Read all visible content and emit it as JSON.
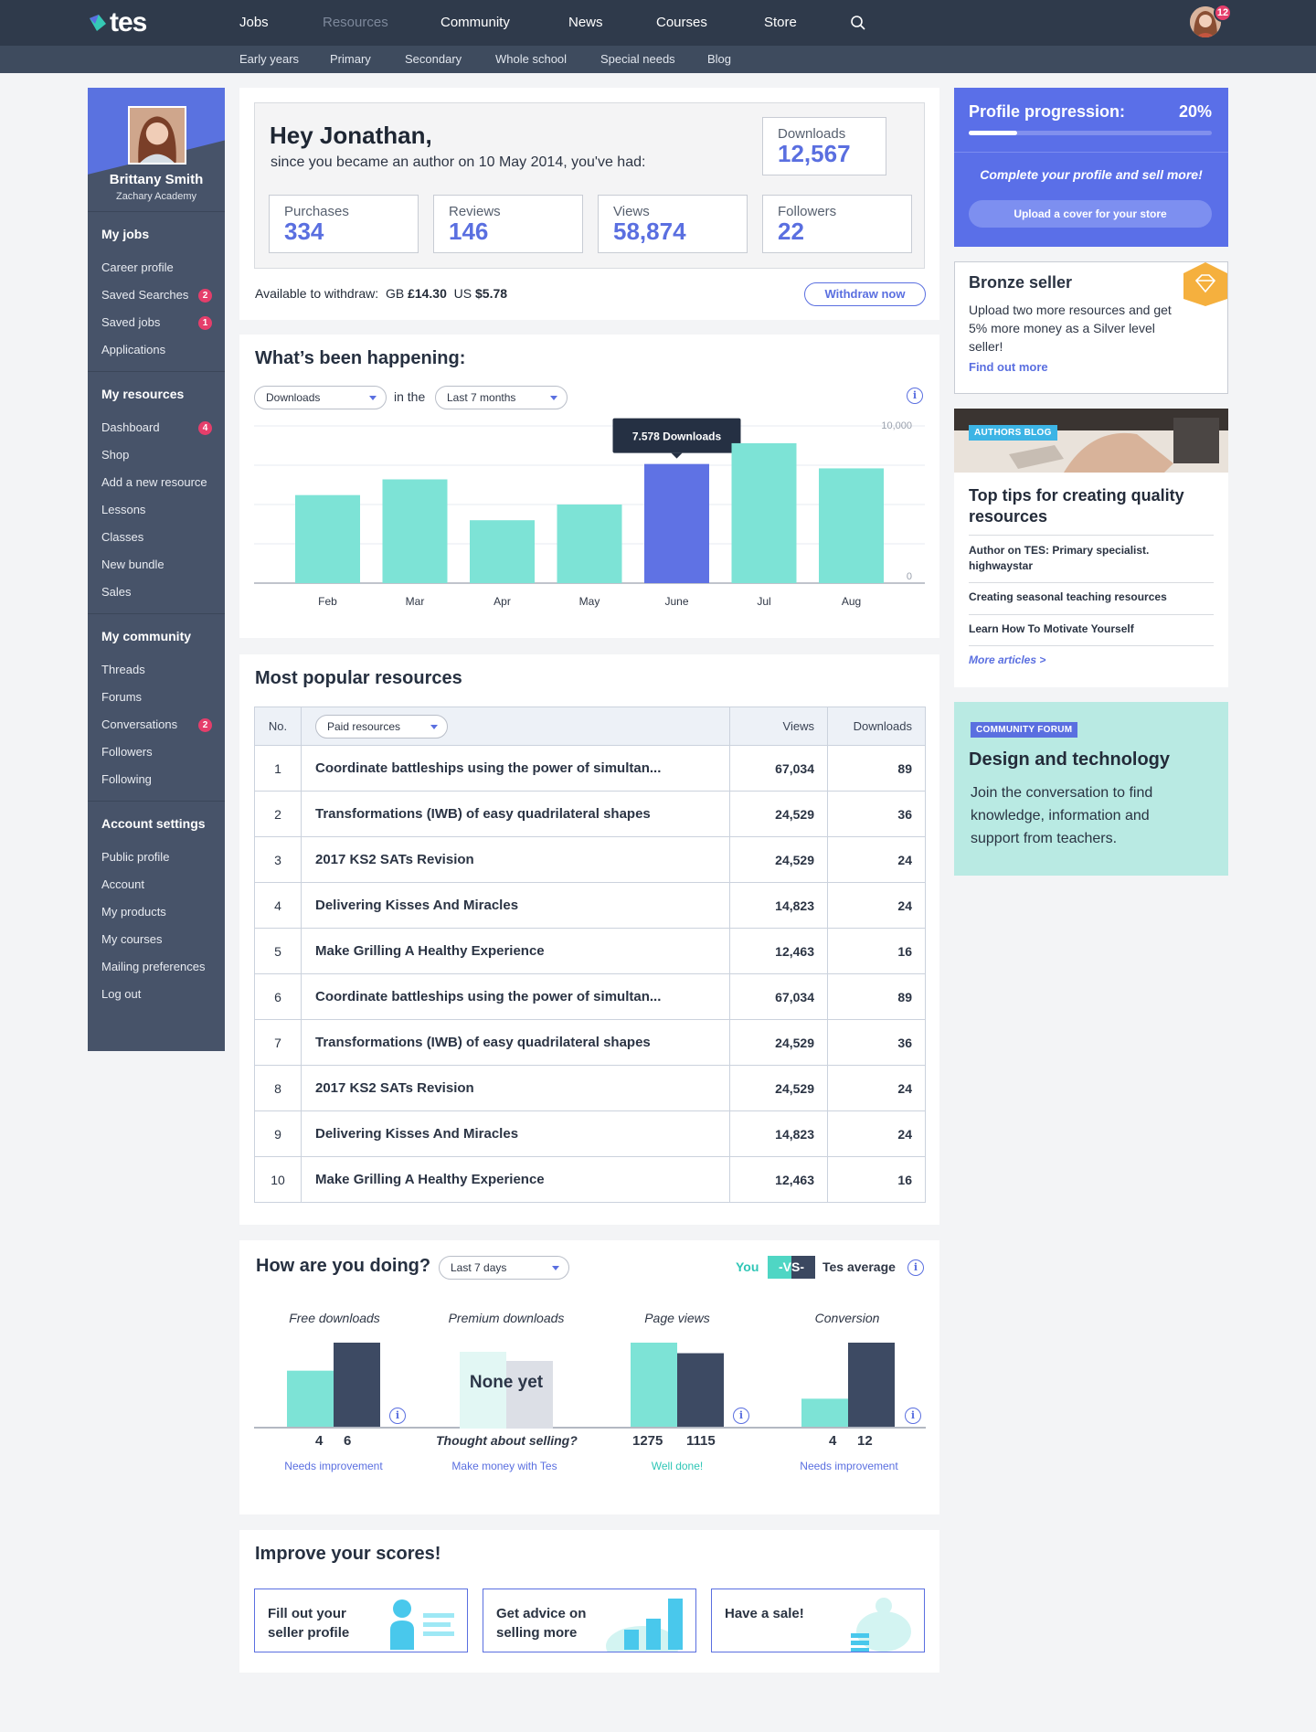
{
  "brand": {
    "name": "tes"
  },
  "nav": {
    "items": [
      "Jobs",
      "Resources",
      "Community",
      "News",
      "Courses",
      "Store"
    ],
    "notif_count": "12"
  },
  "subnav": [
    "Early years",
    "Primary",
    "Secondary",
    "Whole school",
    "Special needs",
    "Blog"
  ],
  "sidebar": {
    "name": "Brittany Smith",
    "school": "Zachary Academy",
    "sections": [
      {
        "title": "My jobs",
        "items": [
          {
            "label": "Career profile"
          },
          {
            "label": "Saved Searches",
            "badge": "2"
          },
          {
            "label": "Saved jobs",
            "badge": "1"
          },
          {
            "label": "Applications"
          }
        ]
      },
      {
        "title": "My resources",
        "items": [
          {
            "label": "Dashboard",
            "badge": "4"
          },
          {
            "label": "Shop"
          },
          {
            "label": "Add a new resource"
          },
          {
            "label": "Lessons"
          },
          {
            "label": "Classes"
          },
          {
            "label": "New bundle"
          },
          {
            "label": "Sales"
          }
        ]
      },
      {
        "title": "My community",
        "items": [
          {
            "label": "Threads"
          },
          {
            "label": "Forums"
          },
          {
            "label": "Conversations",
            "badge": "2"
          },
          {
            "label": "Followers"
          },
          {
            "label": "Following"
          }
        ]
      },
      {
        "title": "Account settings",
        "items": [
          {
            "label": "Public profile"
          },
          {
            "label": "Account"
          },
          {
            "label": "My products"
          },
          {
            "label": "My courses"
          },
          {
            "label": "Mailing preferences"
          },
          {
            "label": "Log out"
          }
        ]
      }
    ]
  },
  "summary": {
    "greeting": "Hey Jonathan,",
    "since": "since you became an author on 10 May 2014, you've had:",
    "downloads_label": "Downloads",
    "downloads": "12,567",
    "stats": [
      {
        "label": "Purchases",
        "value": "334"
      },
      {
        "label": "Reviews",
        "value": "146"
      },
      {
        "label": "Views",
        "value": "58,874"
      },
      {
        "label": "Followers",
        "value": "22"
      }
    ],
    "available_label": "Available to withdraw:",
    "gbp_prefix": "GB",
    "gbp": "£14.30",
    "usd_prefix": "US",
    "usd": "$5.78",
    "withdraw_btn": "Withdraw now"
  },
  "happening": {
    "title": "What’s been happening:",
    "metric": "Downloads",
    "in_the": "in the",
    "period": "Last 7 months",
    "tooltip": "7.578 Downloads"
  },
  "chart_data": {
    "type": "bar",
    "categories": [
      "Feb",
      "Mar",
      "Apr",
      "May",
      "June",
      "Jul",
      "Aug"
    ],
    "values": [
      5600,
      6600,
      4000,
      5000,
      7578,
      8900,
      7300
    ],
    "highlight_index": 4,
    "ylim": [
      0,
      10000
    ],
    "y_ticks": [
      "10,000",
      "0"
    ],
    "colors": {
      "bar": "#7de3d6",
      "highlight": "#5f72e4"
    }
  },
  "popular": {
    "title": "Most popular resources",
    "headers": {
      "no": "No.",
      "filter": "Paid resources",
      "views": "Views",
      "downloads": "Downloads"
    },
    "rows": [
      {
        "no": "1",
        "title": "Coordinate battleships using the power of simultan...",
        "views": "67,034",
        "downloads": "89"
      },
      {
        "no": "2",
        "title": "Transformations (IWB) of easy quadrilateral shapes",
        "views": "24,529",
        "downloads": "36"
      },
      {
        "no": "3",
        "title": "2017 KS2 SATs Revision",
        "views": "24,529",
        "downloads": "24"
      },
      {
        "no": "4",
        "title": "Delivering Kisses And Miracles",
        "views": "14,823",
        "downloads": "24"
      },
      {
        "no": "5",
        "title": "Make Grilling A Healthy Experience",
        "views": "12,463",
        "downloads": "16"
      },
      {
        "no": "6",
        "title": "Coordinate battleships using the power of simultan...",
        "views": "67,034",
        "downloads": "89"
      },
      {
        "no": "7",
        "title": "Transformations (IWB) of easy quadrilateral shapes",
        "views": "24,529",
        "downloads": "36"
      },
      {
        "no": "8",
        "title": "2017 KS2 SATs Revision",
        "views": "24,529",
        "downloads": "24"
      },
      {
        "no": "9",
        "title": "Delivering Kisses And Miracles",
        "views": "14,823",
        "downloads": "24"
      },
      {
        "no": "10",
        "title": "Make Grilling A Healthy Experience",
        "views": "12,463",
        "downloads": "16"
      }
    ]
  },
  "doing": {
    "title": "How are you doing?",
    "period": "Last 7 days",
    "you": "You",
    "vs": "-VS-",
    "tes_avg": "Tes average",
    "cols": [
      {
        "title": "Free  downloads",
        "you": 4,
        "avg": 6,
        "you_label": "4",
        "avg_label": "6",
        "note": "Needs improvement"
      },
      {
        "title": "Premium  downloads",
        "none": "None yet",
        "caption": "Thought about selling?",
        "note": "Make money with Tes"
      },
      {
        "title": "Page views",
        "you": 1275,
        "avg": 1115,
        "you_label": "1275",
        "avg_label": "1115",
        "note": "Well done!"
      },
      {
        "title": "Conversion",
        "you": 4,
        "avg": 12,
        "you_label": "4",
        "avg_label": "12",
        "note": "Needs improvement"
      }
    ]
  },
  "improve": {
    "title": "Improve your scores!",
    "cards": [
      {
        "label": "Fill out your seller profile"
      },
      {
        "label": "Get advice on selling more"
      },
      {
        "label": "Have a sale!"
      }
    ]
  },
  "progression": {
    "title": "Profile progression:",
    "percent": "20%",
    "fraction": 0.2,
    "cta_text": "Complete your profile and sell more!",
    "button": "Upload a cover for your store"
  },
  "bronze": {
    "title": "Bronze seller",
    "text": "Upload two more resources and get 5% more money as a Silver level seller!",
    "link": "Find out more"
  },
  "blog": {
    "tag": "AUTHORS BLOG",
    "title": "Top tips for creating quality resources",
    "articles": [
      "Author on TES: Primary specialist. highwaystar",
      "Creating seasonal teaching resources",
      "Learn How To Motivate Yourself"
    ],
    "more": "More articles >"
  },
  "forum": {
    "tag": "COMMUNITY FORUM",
    "title": "Design and technology",
    "text": "Join the conversation to find knowledge, information and support from teachers."
  }
}
